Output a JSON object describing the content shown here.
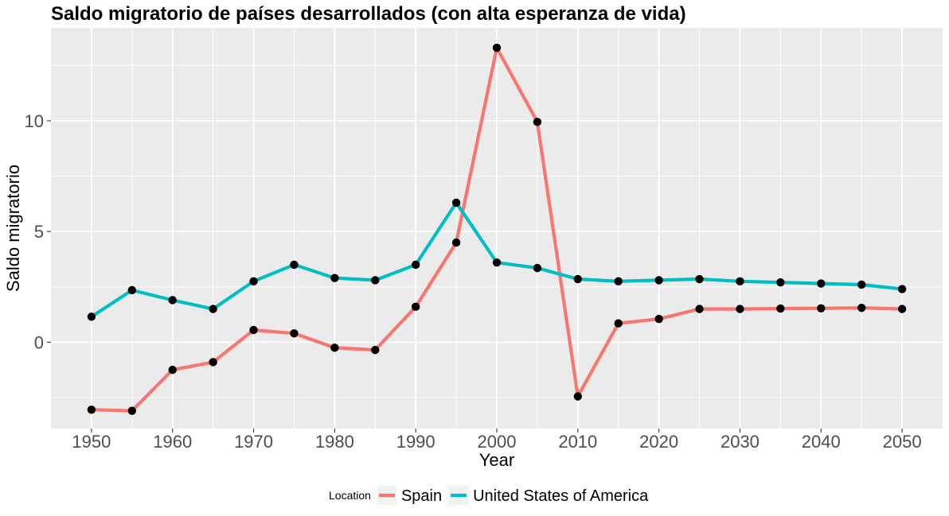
{
  "chart_data": {
    "type": "line",
    "title": "Saldo migratorio de países desarrollados (con alta esperanza de vida)",
    "xlabel": "Year",
    "ylabel": "Saldo migratorio",
    "x": [
      1950,
      1955,
      1960,
      1965,
      1970,
      1975,
      1980,
      1985,
      1990,
      1995,
      2000,
      2005,
      2010,
      2015,
      2020,
      2025,
      2030,
      2035,
      2040,
      2045,
      2050
    ],
    "x_ticks": [
      1950,
      1960,
      1970,
      1980,
      1990,
      2000,
      2010,
      2020,
      2030,
      2040,
      2050
    ],
    "x_tick_labels": [
      "1950",
      "1960",
      "1970",
      "1980",
      "1990",
      "2000",
      "2010",
      "2020",
      "2030",
      "2040",
      "2050"
    ],
    "y_ticks": [
      0,
      5,
      10
    ],
    "y_tick_labels": [
      "0",
      "5",
      "10"
    ],
    "xlim": [
      1945,
      2055
    ],
    "ylim": [
      -3.9,
      14.2
    ],
    "grid": true,
    "legend_title": "Location",
    "legend_position": "bottom",
    "series": [
      {
        "name": "Spain",
        "color": "#F8766D",
        "values": [
          -3.05,
          -3.1,
          -1.25,
          -0.9,
          0.55,
          0.4,
          -0.25,
          -0.35,
          1.6,
          4.5,
          13.3,
          9.95,
          -2.45,
          0.85,
          1.05,
          1.5,
          1.5,
          1.52,
          1.53,
          1.55,
          1.5
        ]
      },
      {
        "name": "United States of America",
        "color": "#00BFC4",
        "values": [
          1.15,
          2.35,
          1.9,
          1.5,
          2.75,
          3.5,
          2.9,
          2.8,
          3.5,
          6.3,
          3.6,
          3.35,
          2.85,
          2.75,
          2.8,
          2.85,
          2.75,
          2.7,
          2.65,
          2.6,
          2.4
        ]
      }
    ],
    "point_color": "#000000",
    "panel_color": "#EBEBEB",
    "gridline_color": "#FFFFFF"
  }
}
